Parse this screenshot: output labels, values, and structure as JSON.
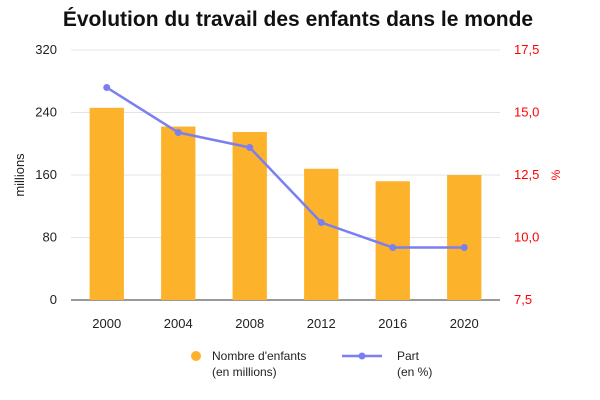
{
  "chart_data": {
    "type": "bar",
    "title": "Évolution du travail des enfants dans le monde",
    "categories": [
      "2000",
      "2004",
      "2008",
      "2012",
      "2016",
      "2020"
    ],
    "ylabel": "millions",
    "y2label": "%",
    "ylim": [
      0,
      320
    ],
    "y2lim": [
      7.5,
      17.5
    ],
    "yticks": [
      "0",
      "80",
      "160",
      "240",
      "320"
    ],
    "y2ticks": [
      "7,5",
      "10,0",
      "12,5",
      "15,0",
      "17,5"
    ],
    "grid": true,
    "legend_position": "bottom",
    "series": [
      {
        "name": "Nombre d'enfants",
        "name_line2": "(en millions)",
        "type": "bar",
        "axis": "left",
        "color": "#fdb22b",
        "values": [
          246,
          222,
          215,
          168,
          152,
          160
        ]
      },
      {
        "name": "Part",
        "name_line2": "(en %)",
        "type": "line",
        "axis": "right",
        "color": "#7b7ff0",
        "values": [
          16.0,
          14.2,
          13.6,
          10.6,
          9.6,
          9.6
        ]
      }
    ]
  }
}
